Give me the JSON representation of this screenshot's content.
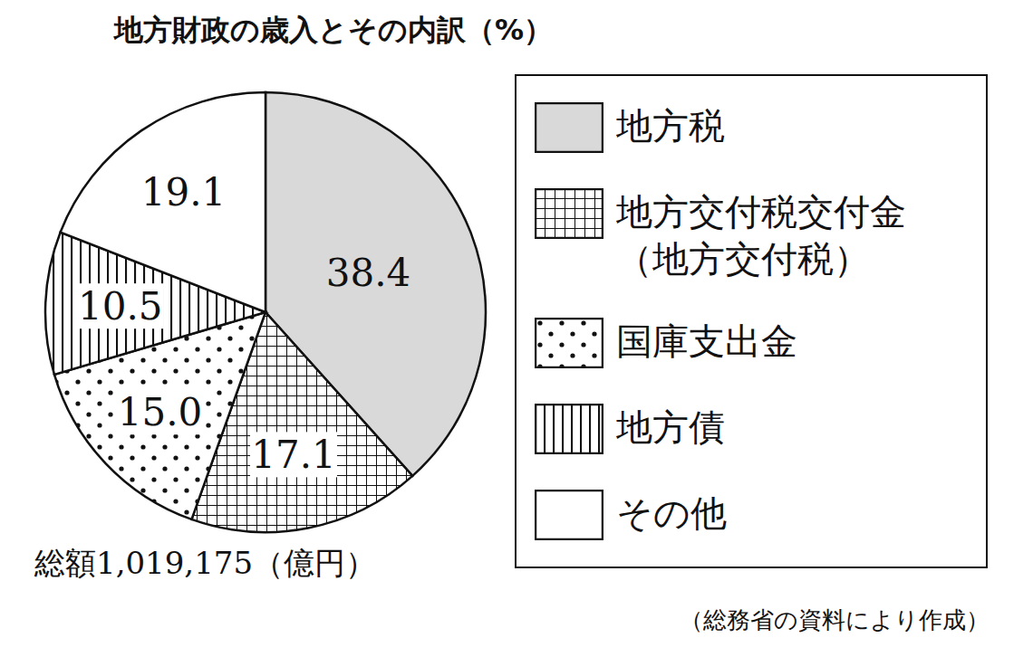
{
  "chart_data": {
    "type": "pie",
    "title": "地方財政の歳入とその内訳（%）",
    "categories": [
      "地方税",
      "地方交付税交付金（地方交付税）",
      "国庫支出金",
      "地方債",
      "その他"
    ],
    "values": [
      38.4,
      17.1,
      15.0,
      10.5,
      19.1
    ],
    "value_labels": [
      "38.4",
      "17.1",
      "15.0",
      "10.5",
      "19.1"
    ],
    "colors": [
      "#d9d9d9",
      "#ffffff",
      "#ffffff",
      "#ffffff",
      "#ffffff"
    ],
    "data_labels": true,
    "legend": "right",
    "annotations": [
      "総額1,019,175（億円）",
      "（総務省の資料により作成）"
    ]
  }
}
